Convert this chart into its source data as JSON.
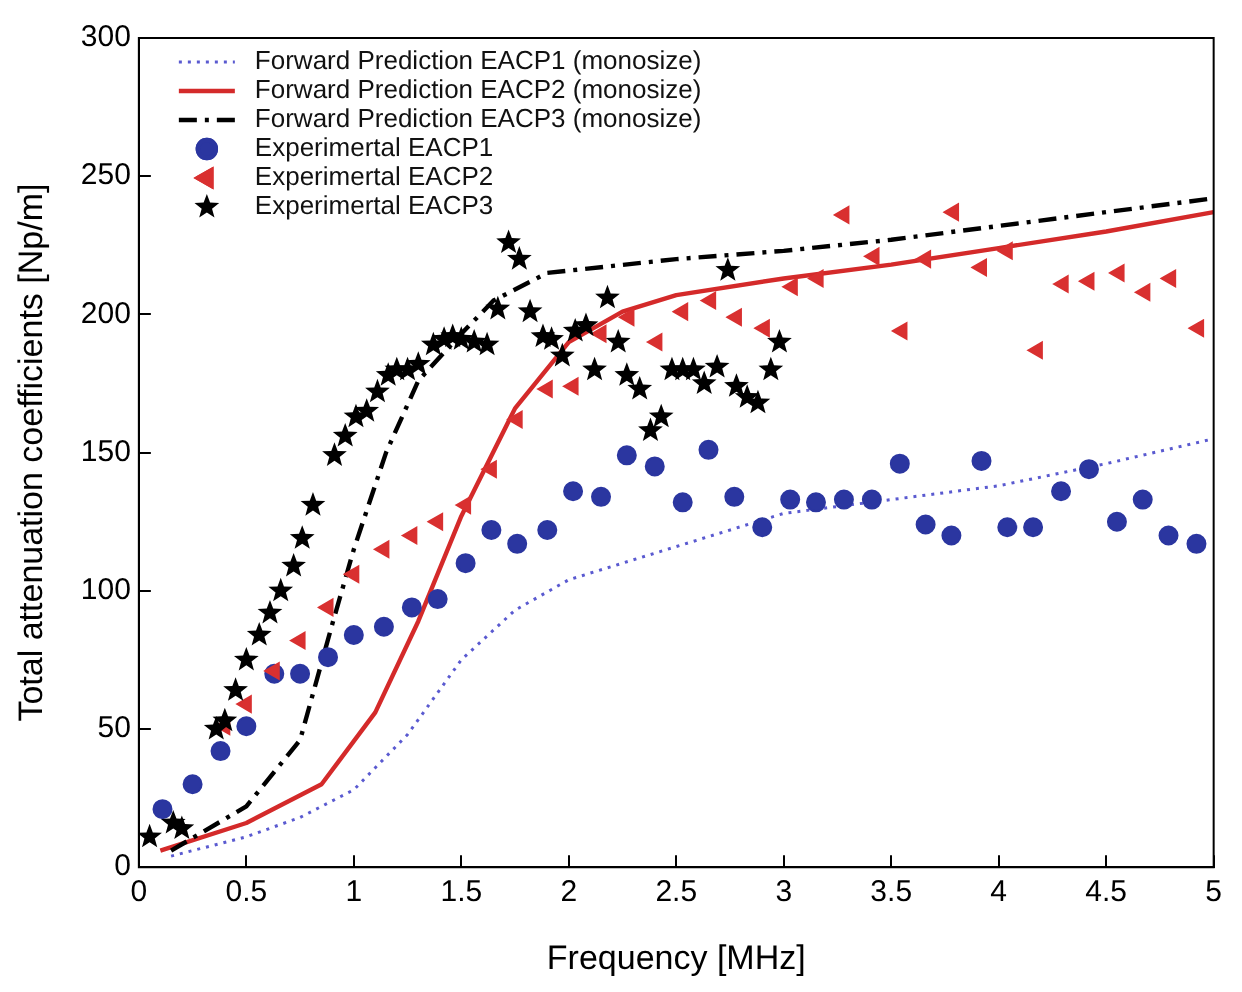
{
  "chart_data": {
    "type": "line",
    "xlabel": "Frequency [MHz]",
    "ylabel": "Total attenuation coefficients [Np/m]",
    "xlim": [
      0,
      5
    ],
    "xticks": [
      0,
      0.5,
      1,
      1.5,
      2,
      2.5,
      3,
      3.5,
      4,
      4.5,
      5
    ],
    "ylim": [
      0,
      300
    ],
    "yticks": [
      0,
      50,
      100,
      150,
      200,
      250,
      300
    ],
    "grid": false,
    "legend": "top left",
    "series": [
      {
        "name": "Forward Prediction EACP1 (monosize)",
        "color": "#5a5ad0",
        "line_style": "dotted",
        "marker": "none",
        "x": [
          0.15,
          0.3,
          0.5,
          0.75,
          1.0,
          1.25,
          1.5,
          1.75,
          2,
          2.5,
          3,
          3.5,
          4,
          4.5,
          5
        ],
        "values": [
          4,
          7,
          11,
          18,
          28,
          48,
          75,
          93,
          104,
          116,
          128,
          133,
          138,
          146,
          155
        ]
      },
      {
        "name": "Forward Prediction EACP2 (monosize)",
        "color": "#d42a2a",
        "line_style": "solid",
        "marker": "none",
        "x": [
          0.1,
          0.5,
          0.85,
          1.1,
          1.3,
          1.5,
          1.75,
          2,
          2.25,
          2.5,
          3,
          3.5,
          4,
          4.5,
          5
        ],
        "values": [
          6,
          16,
          30,
          56,
          89,
          127,
          166,
          190,
          201,
          207,
          213,
          218,
          224,
          230,
          237
        ]
      },
      {
        "name": "Forward Prediction EACP3 (monosize)",
        "color": "#000000",
        "line_style": "dashdot",
        "marker": "none",
        "x": [
          0.15,
          0.5,
          0.75,
          0.9,
          1,
          1.15,
          1.3,
          1.5,
          1.65,
          1.9,
          2.5,
          3,
          3.5,
          4,
          4.5,
          5
        ],
        "values": [
          6,
          22,
          46,
          88,
          115,
          150,
          176,
          193,
          205,
          215,
          220,
          223,
          227,
          232,
          237,
          242
        ]
      },
      {
        "name": "Experimertal EACP1",
        "type": "scatter",
        "color": "#2b36a0",
        "marker": "circle",
        "x": [
          0.11,
          0.25,
          0.38,
          0.5,
          0.63,
          0.75,
          0.88,
          1.0,
          1.14,
          1.27,
          1.39,
          1.52,
          1.64,
          1.76,
          1.9,
          2.02,
          2.15,
          2.27,
          2.4,
          2.53,
          2.65,
          2.77,
          2.9,
          3.03,
          3.15,
          3.28,
          3.41,
          3.54,
          3.66,
          3.78,
          3.92,
          4.04,
          4.16,
          4.29,
          4.42,
          4.55,
          4.67,
          4.79,
          4.92
        ],
        "values": [
          21,
          30,
          42,
          51,
          70,
          70,
          76,
          84,
          87,
          94,
          97,
          110,
          122,
          117,
          122,
          136,
          134,
          149,
          145,
          132,
          151,
          134,
          123,
          133,
          132,
          133,
          133,
          146,
          124,
          120,
          147,
          123,
          123,
          136,
          144,
          125,
          133,
          120,
          117
        ]
      },
      {
        "name": "Experimertal EACP2",
        "type": "scatter",
        "color": "#d93030",
        "marker": "triangle",
        "x": [
          0.4,
          0.5,
          0.63,
          0.75,
          0.88,
          1.0,
          1.14,
          1.27,
          1.39,
          1.52,
          1.64,
          1.76,
          1.9,
          2.02,
          2.15,
          2.28,
          2.41,
          2.53,
          2.66,
          2.78,
          2.91,
          3.04,
          3.16,
          3.28,
          3.42,
          3.55,
          3.66,
          3.79,
          3.92,
          4.04,
          4.18,
          4.3,
          4.42,
          4.56,
          4.68,
          4.8,
          4.93
        ],
        "values": [
          51,
          59,
          71,
          82,
          94,
          106,
          115,
          120,
          125,
          131,
          144,
          162,
          173,
          174,
          193,
          199,
          190,
          201,
          205,
          199,
          195,
          210,
          213,
          236,
          221,
          194,
          220,
          237,
          217,
          223,
          187,
          211,
          212,
          215,
          208,
          213,
          195
        ]
      },
      {
        "name": "Experimertal EACP3",
        "type": "scatter",
        "color": "#000000",
        "marker": "star",
        "x": [
          0.05,
          0.16,
          0.2,
          0.36,
          0.4,
          0.45,
          0.5,
          0.56,
          0.61,
          0.66,
          0.72,
          0.76,
          0.81,
          0.91,
          0.96,
          1.01,
          1.06,
          1.11,
          1.16,
          1.2,
          1.25,
          1.3,
          1.37,
          1.42,
          1.46,
          1.5,
          1.56,
          1.62,
          1.67,
          1.72,
          1.77,
          1.82,
          1.88,
          1.92,
          1.97,
          2.03,
          2.08,
          2.12,
          2.18,
          2.23,
          2.27,
          2.33,
          2.38,
          2.43,
          2.48,
          2.53,
          2.58,
          2.63,
          2.69,
          2.74,
          2.78,
          2.83,
          2.88,
          2.94,
          2.98
        ],
        "values": [
          11,
          16,
          14,
          50,
          53,
          64,
          75,
          84,
          92,
          100,
          109,
          119,
          131,
          149,
          156,
          163,
          165,
          172,
          178,
          180,
          180,
          182,
          189,
          191,
          192,
          191,
          190,
          189,
          202,
          226,
          220,
          201,
          192,
          191,
          185,
          194,
          196,
          180,
          206,
          190,
          178,
          173,
          158,
          163,
          180,
          180,
          180,
          175,
          181,
          216,
          174,
          170,
          168,
          180,
          190
        ]
      }
    ]
  }
}
